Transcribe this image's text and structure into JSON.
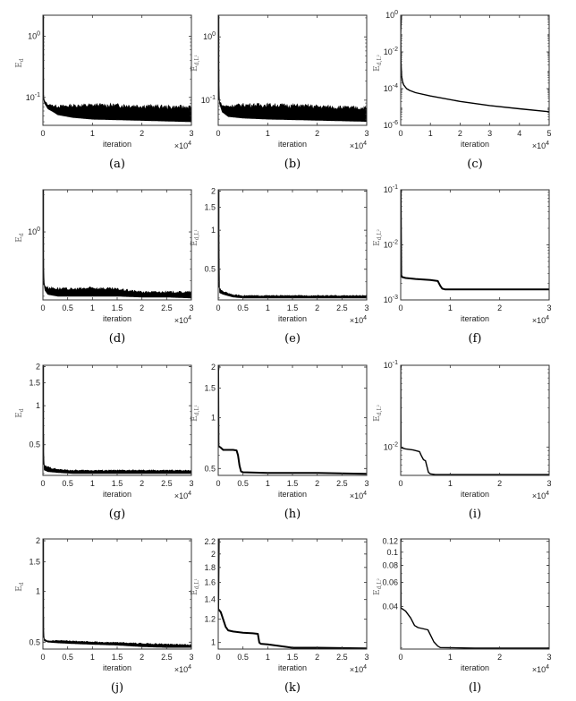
{
  "figure": {
    "layout": {
      "rows": 4,
      "cols": 3
    },
    "colors": {
      "line": "#000000",
      "axes": "#333333",
      "background": "#ffffff"
    }
  },
  "chart_data": [
    {
      "id": "a",
      "caption": "(a)",
      "type": "line",
      "yscale": "log",
      "noisy": true,
      "xlabel": "iteration",
      "ylabel": "E_d",
      "ylabel_main": "E",
      "ylabel_sub": "d",
      "xlim": [
        0,
        30000
      ],
      "x_multiplier": "×10^4",
      "xticks": [
        0,
        10000,
        20000,
        30000
      ],
      "xtick_labels": [
        "0",
        "1",
        "2",
        "3"
      ],
      "ylim": [
        0.035,
        2.2
      ],
      "yticks": [
        0.1,
        1
      ],
      "ytick_labels": [
        "10^-1",
        "10^0"
      ],
      "x": [
        0,
        300,
        1000,
        3000,
        6000,
        10000,
        15000,
        20000,
        25000,
        30000
      ],
      "lower": [
        0.11,
        0.08,
        0.065,
        0.052,
        0.047,
        0.044,
        0.043,
        0.042,
        0.041,
        0.04
      ],
      "upper": [
        0.11,
        0.09,
        0.078,
        0.075,
        0.078,
        0.08,
        0.08,
        0.078,
        0.075,
        0.075
      ]
    },
    {
      "id": "b",
      "caption": "(b)",
      "type": "line",
      "yscale": "log",
      "noisy": true,
      "xlabel": "iteration",
      "ylabel": "E_d,L1",
      "ylabel_main": "E",
      "ylabel_sub": "d,L¹",
      "xlim": [
        0,
        30000
      ],
      "x_multiplier": "×10^4",
      "xticks": [
        0,
        10000,
        20000,
        30000
      ],
      "xtick_labels": [
        "0",
        "1",
        "2",
        "3"
      ],
      "ylim": [
        0.04,
        2.2
      ],
      "yticks": [
        0.1,
        1
      ],
      "ytick_labels": [
        "10^-1",
        "10^0"
      ],
      "x": [
        0,
        200,
        800,
        2000,
        5000,
        10000,
        15000,
        20000,
        25000,
        30000
      ],
      "lower": [
        0.3,
        0.09,
        0.065,
        0.055,
        0.052,
        0.05,
        0.049,
        0.048,
        0.047,
        0.046
      ],
      "upper": [
        0.3,
        0.1,
        0.085,
        0.085,
        0.09,
        0.09,
        0.088,
        0.085,
        0.082,
        0.08
      ]
    },
    {
      "id": "c",
      "caption": "(c)",
      "type": "line",
      "yscale": "log",
      "noisy": false,
      "xlabel": "iteration",
      "ylabel": "E_d,L2",
      "ylabel_main": "E",
      "ylabel_sub": "d,L²",
      "xlim": [
        0,
        50000
      ],
      "x_multiplier": "×10^4",
      "xticks": [
        0,
        10000,
        20000,
        30000,
        40000,
        50000
      ],
      "xtick_labels": [
        "0",
        "1",
        "2",
        "3",
        "4",
        "5"
      ],
      "ylim": [
        1e-06,
        1
      ],
      "yticks": [
        1e-06,
        0.0001,
        0.01,
        1
      ],
      "ytick_labels": [
        "10^-6",
        "10^-4",
        "10^-2",
        "10^0"
      ],
      "x": [
        0,
        100,
        300,
        600,
        1000,
        2000,
        3000,
        5000,
        10000,
        20000,
        30000,
        40000,
        50000
      ],
      "y": [
        0.1,
        0.003,
        0.0005,
        0.00025,
        0.00016,
        0.0001,
        8e-05,
        6e-05,
        4e-05,
        2e-05,
        1.2e-05,
        8e-06,
        5.5e-06
      ]
    },
    {
      "id": "d",
      "caption": "(d)",
      "type": "line",
      "yscale": "log",
      "noisy": true,
      "xlabel": "iteration",
      "ylabel": "E_d",
      "ylabel_main": "E",
      "ylabel_sub": "d",
      "xlim": [
        0,
        30000
      ],
      "x_multiplier": "×10^4",
      "xticks": [
        0,
        5000,
        10000,
        15000,
        20000,
        25000,
        30000
      ],
      "xtick_labels": [
        "0",
        "0.5",
        "1",
        "1.5",
        "2",
        "2.5",
        "3"
      ],
      "ylim": [
        0.28,
        2.2
      ],
      "yticks": [
        1
      ],
      "ytick_labels": [
        "10^0"
      ],
      "x": [
        0,
        300,
        1000,
        3000,
        6000,
        10000,
        15000,
        20000,
        25000,
        30000
      ],
      "lower": [
        0.6,
        0.34,
        0.31,
        0.3,
        0.3,
        0.3,
        0.3,
        0.295,
        0.295,
        0.29
      ],
      "upper": [
        0.6,
        0.37,
        0.36,
        0.355,
        0.35,
        0.36,
        0.35,
        0.33,
        0.33,
        0.33
      ]
    },
    {
      "id": "e",
      "caption": "(e)",
      "type": "line",
      "yscale": "log",
      "noisy": true,
      "xlabel": "iteration",
      "ylabel": "E_d,L1",
      "ylabel_main": "E",
      "ylabel_sub": "d,L¹",
      "xlim": [
        0,
        30000
      ],
      "x_multiplier": "×10^4",
      "xticks": [
        0,
        5000,
        10000,
        15000,
        20000,
        25000,
        30000
      ],
      "xtick_labels": [
        "0",
        "0.5",
        "1",
        "1.5",
        "2",
        "2.5",
        "3"
      ],
      "ylim": [
        0.29,
        2.05
      ],
      "yticks": [
        0.5,
        1,
        1.5,
        2
      ],
      "ytick_labels": [
        "0.5",
        "1",
        "1.5",
        "2"
      ],
      "x": [
        0,
        200,
        1000,
        3000,
        5000,
        10000,
        20000,
        30000
      ],
      "lower": [
        2.0,
        0.33,
        0.32,
        0.305,
        0.3,
        0.3,
        0.3,
        0.3
      ],
      "upper": [
        2.0,
        0.36,
        0.34,
        0.32,
        0.315,
        0.315,
        0.315,
        0.315
      ]
    },
    {
      "id": "f",
      "caption": "(f)",
      "type": "line",
      "yscale": "log",
      "noisy": false,
      "xlabel": "iteration",
      "ylabel": "E_d,L2",
      "ylabel_main": "E",
      "ylabel_sub": "d,L²",
      "xlim": [
        0,
        30000
      ],
      "x_multiplier": "×10^4",
      "xticks": [
        0,
        10000,
        20000,
        30000
      ],
      "xtick_labels": [
        "0",
        "1",
        "2",
        "3"
      ],
      "ylim": [
        0.001,
        0.1
      ],
      "yticks": [
        0.001,
        0.01,
        0.1
      ],
      "ytick_labels": [
        "10^-3",
        "10^-2",
        "10^-1"
      ],
      "x": [
        0,
        100,
        300,
        1000,
        3000,
        6000,
        7500,
        8000,
        8400,
        9000,
        12000,
        20000,
        30000
      ],
      "y": [
        0.09,
        0.0028,
        0.0026,
        0.0025,
        0.0024,
        0.0023,
        0.0022,
        0.0018,
        0.0016,
        0.00155,
        0.00155,
        0.00155,
        0.00155
      ]
    },
    {
      "id": "g",
      "caption": "(g)",
      "type": "line",
      "yscale": "log",
      "noisy": true,
      "xlabel": "iteration",
      "ylabel": "E_d",
      "ylabel_main": "E",
      "ylabel_sub": "d",
      "xlim": [
        0,
        30000
      ],
      "x_multiplier": "×10^4",
      "xticks": [
        0,
        5000,
        10000,
        15000,
        20000,
        25000,
        30000
      ],
      "xtick_labels": [
        "0",
        "0.5",
        "1",
        "1.5",
        "2",
        "2.5",
        "3"
      ],
      "ylim": [
        0.29,
        2.05
      ],
      "yticks": [
        0.5,
        1,
        1.5,
        2
      ],
      "ytick_labels": [
        "0.5",
        "1",
        "1.5",
        "2"
      ],
      "x": [
        0,
        200,
        1000,
        3000,
        6000,
        10000,
        20000,
        30000
      ],
      "lower": [
        0.6,
        0.32,
        0.31,
        0.305,
        0.3,
        0.3,
        0.3,
        0.3
      ],
      "upper": [
        0.6,
        0.35,
        0.34,
        0.325,
        0.32,
        0.32,
        0.32,
        0.32
      ]
    },
    {
      "id": "h",
      "caption": "(h)",
      "type": "line",
      "yscale": "log",
      "noisy": false,
      "xlabel": "iteration",
      "ylabel": "E_d,L1",
      "ylabel_main": "E",
      "ylabel_sub": "d,L¹",
      "xlim": [
        0,
        30000
      ],
      "x_multiplier": "×10^4",
      "xticks": [
        0,
        5000,
        10000,
        15000,
        20000,
        25000,
        30000
      ],
      "xtick_labels": [
        "0",
        "0.5",
        "1",
        "1.5",
        "2",
        "2.5",
        "3"
      ],
      "ylim": [
        0.455,
        2.05
      ],
      "yticks": [
        0.5,
        1,
        1.5,
        2
      ],
      "ytick_labels": [
        "0.5",
        "1",
        "1.5",
        "2"
      ],
      "x": [
        0,
        50,
        500,
        1000,
        2000,
        3000,
        3700,
        4000,
        4300,
        4600,
        5000,
        10000,
        20000,
        30000
      ],
      "y": [
        1.9,
        0.68,
        0.665,
        0.645,
        0.645,
        0.645,
        0.64,
        0.6,
        0.52,
        0.48,
        0.475,
        0.47,
        0.47,
        0.465
      ]
    },
    {
      "id": "i",
      "caption": "(i)",
      "type": "line",
      "yscale": "log",
      "noisy": false,
      "xlabel": "iteration",
      "ylabel": "E_d,L2",
      "ylabel_main": "E",
      "ylabel_sub": "d,L²",
      "xlim": [
        0,
        30000
      ],
      "x_multiplier": "×10^4",
      "xticks": [
        0,
        10000,
        20000,
        30000
      ],
      "xtick_labels": [
        "0",
        "1",
        "2",
        "3"
      ],
      "ylim": [
        0.0045,
        0.1
      ],
      "yticks": [
        0.01,
        0.1
      ],
      "ytick_labels": [
        "10^-2",
        "10^-1"
      ],
      "x": [
        0,
        50,
        1000,
        2500,
        3800,
        4200,
        4600,
        5000,
        5300,
        5600,
        6000,
        7000,
        15000,
        25000,
        30000
      ],
      "y": [
        0.09,
        0.0098,
        0.0095,
        0.0092,
        0.0088,
        0.0078,
        0.007,
        0.0068,
        0.0058,
        0.0049,
        0.0047,
        0.0046,
        0.0046,
        0.0046,
        0.0046
      ]
    },
    {
      "id": "j",
      "caption": "(j)",
      "type": "line",
      "yscale": "log",
      "noisy": true,
      "xlabel": "iteration",
      "ylabel": "E_d",
      "ylabel_main": "E",
      "ylabel_sub": "d",
      "xlim": [
        0,
        30000
      ],
      "x_multiplier": "×10^4",
      "xticks": [
        0,
        5000,
        10000,
        15000,
        20000,
        25000,
        30000
      ],
      "xtick_labels": [
        "0",
        "0.5",
        "1",
        "1.5",
        "2",
        "2.5",
        "3"
      ],
      "ylim": [
        0.455,
        2.05
      ],
      "yticks": [
        0.5,
        1,
        1.5,
        2
      ],
      "ytick_labels": [
        "0.5",
        "1",
        "1.5",
        "2"
      ],
      "x": [
        0,
        200,
        1000,
        3000,
        6000,
        10000,
        15000,
        20000,
        25000,
        30000
      ],
      "lower": [
        0.7,
        0.51,
        0.5,
        0.495,
        0.49,
        0.485,
        0.48,
        0.47,
        0.465,
        0.465
      ],
      "upper": [
        0.7,
        0.53,
        0.51,
        0.515,
        0.51,
        0.505,
        0.5,
        0.495,
        0.49,
        0.485
      ]
    },
    {
      "id": "k",
      "caption": "(k)",
      "type": "line",
      "yscale": "log",
      "noisy": false,
      "xlabel": "iteration",
      "ylabel": "E_d,L1",
      "ylabel_main": "E",
      "ylabel_sub": "d,L¹",
      "xlim": [
        0,
        30000
      ],
      "x_multiplier": "×10^4",
      "xticks": [
        0,
        5000,
        10000,
        15000,
        20000,
        25000,
        30000
      ],
      "xtick_labels": [
        "0",
        "0.5",
        "1",
        "1.5",
        "2",
        "2.5",
        "3"
      ],
      "ylim": [
        0.95,
        2.25
      ],
      "yticks": [
        1,
        1.2,
        1.4,
        1.6,
        1.8,
        2,
        2.2
      ],
      "ytick_labels": [
        "1",
        "1.2",
        "1.4",
        "1.6",
        "1.8",
        "2",
        "2.2"
      ],
      "x": [
        0,
        500,
        1000,
        1500,
        2000,
        3000,
        5000,
        7000,
        8000,
        8300,
        8600,
        10000,
        12000,
        15000,
        20000,
        30000
      ],
      "y": [
        1.3,
        1.27,
        1.2,
        1.13,
        1.1,
        1.09,
        1.08,
        1.075,
        1.07,
        1.0,
        0.99,
        0.985,
        0.975,
        0.96,
        0.96,
        0.955
      ]
    },
    {
      "id": "l",
      "caption": "(l)",
      "type": "line",
      "yscale": "log",
      "noisy": false,
      "xlabel": "iteration",
      "ylabel": "E_d,L2",
      "ylabel_main": "E",
      "ylabel_sub": "d,L²",
      "xlim": [
        0,
        30000
      ],
      "x_multiplier": "×10^4",
      "xticks": [
        0,
        10000,
        20000,
        30000
      ],
      "xtick_labels": [
        "0",
        "1",
        "2",
        "3"
      ],
      "ylim": [
        0.0195,
        0.125
      ],
      "yticks": [
        0.04,
        0.06,
        0.08,
        0.1,
        0.12
      ],
      "ytick_labels": [
        "0.04",
        "0.06",
        "0.08",
        "0.1",
        "0.12"
      ],
      "x": [
        0,
        50,
        1000,
        2000,
        2800,
        3500,
        5500,
        6200,
        6700,
        7500,
        8000,
        15000,
        30000
      ],
      "y": [
        0.12,
        0.039,
        0.037,
        0.033,
        0.029,
        0.028,
        0.027,
        0.024,
        0.022,
        0.0205,
        0.02,
        0.0198,
        0.0198
      ]
    }
  ]
}
